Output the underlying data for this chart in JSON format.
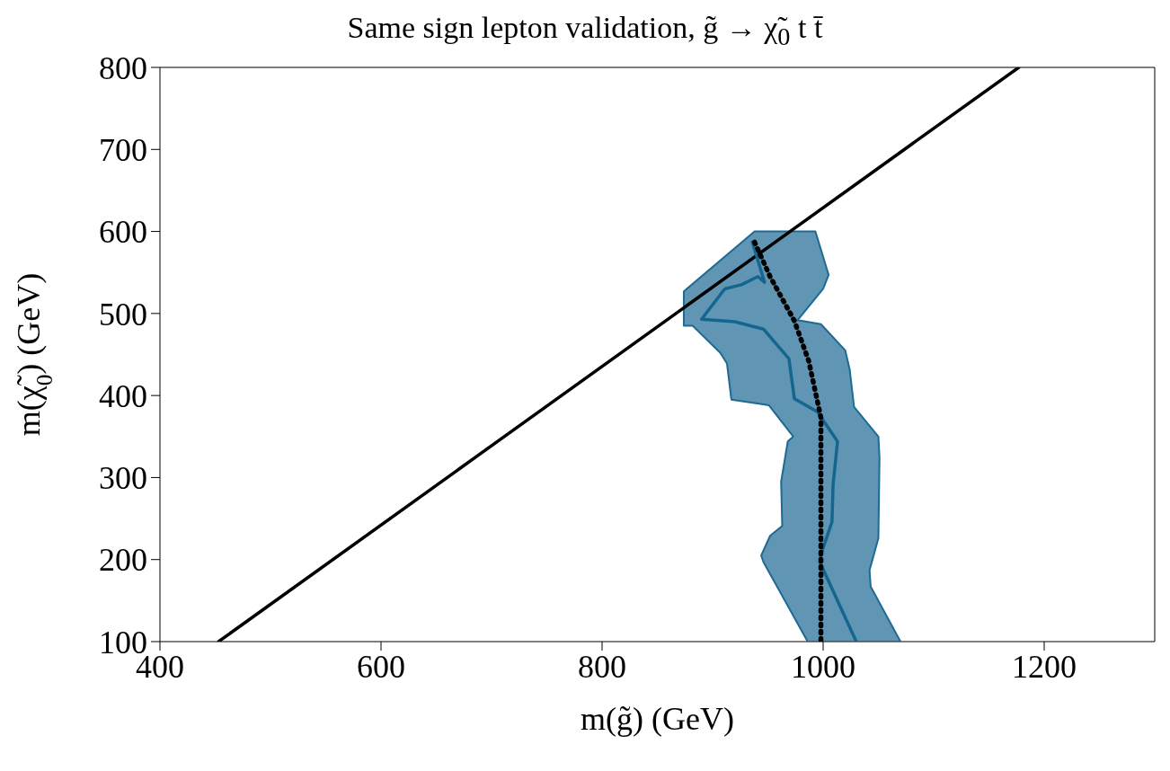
{
  "chart_data": {
    "type": "line",
    "title": "Same sign lepton validation, g̃ → χ̃$_{0}$ t t̄",
    "xlabel": "m(g̃) (GeV)",
    "ylabel": "m(χ̃$_{0}$)  (GeV)",
    "xlim": [
      400,
      1300
    ],
    "xticks": [
      400,
      600,
      800,
      1000,
      1200
    ],
    "ylim": [
      100,
      800
    ],
    "yticks": [
      100,
      200,
      300,
      400,
      500,
      600,
      700,
      800
    ],
    "series": [
      {
        "type": "area",
        "color": "#1d6a93",
        "x": [
          938,
          993,
          1005,
          1000,
          977,
          998,
          1020,
          1024,
          1028,
          1050,
          1051,
          1050,
          1042,
          1043,
          1070,
          986,
          946,
          944,
          952,
          963,
          962,
          968,
          973,
          951,
          942,
          917,
          913,
          907,
          882,
          874,
          874
        ],
        "values": [
          600,
          600,
          547,
          530,
          492,
          487,
          455,
          432,
          386,
          350,
          324,
          226,
          187,
          167,
          100,
          100,
          197,
          205,
          229,
          241,
          295,
          344,
          350,
          388,
          390,
          395,
          439,
          452,
          485,
          485,
          527
        ]
      },
      {
        "color": "#000000",
        "line_style": "solid",
        "x": [
          453,
          1177
        ],
        "values": [
          100,
          800
        ]
      },
      {
        "color": "#15668f",
        "line_style": "solid",
        "x": [
          1030,
          997,
          998,
          1008,
          1009,
          1013,
          995,
          982,
          974,
          969,
          946,
          920,
          890,
          911,
          926,
          941,
          947,
          936
        ],
        "values": [
          100,
          197,
          206,
          246,
          291,
          344,
          380,
          390,
          396,
          445,
          481,
          490,
          493,
          530,
          535,
          545,
          538,
          587
        ]
      },
      {
        "color": "#000000",
        "line_style": "dotted",
        "x": [
          938,
          952,
          974,
          987,
          998,
          998,
          998
        ],
        "values": [
          587,
          545,
          491,
          442,
          373,
          193,
          100
        ]
      }
    ]
  }
}
